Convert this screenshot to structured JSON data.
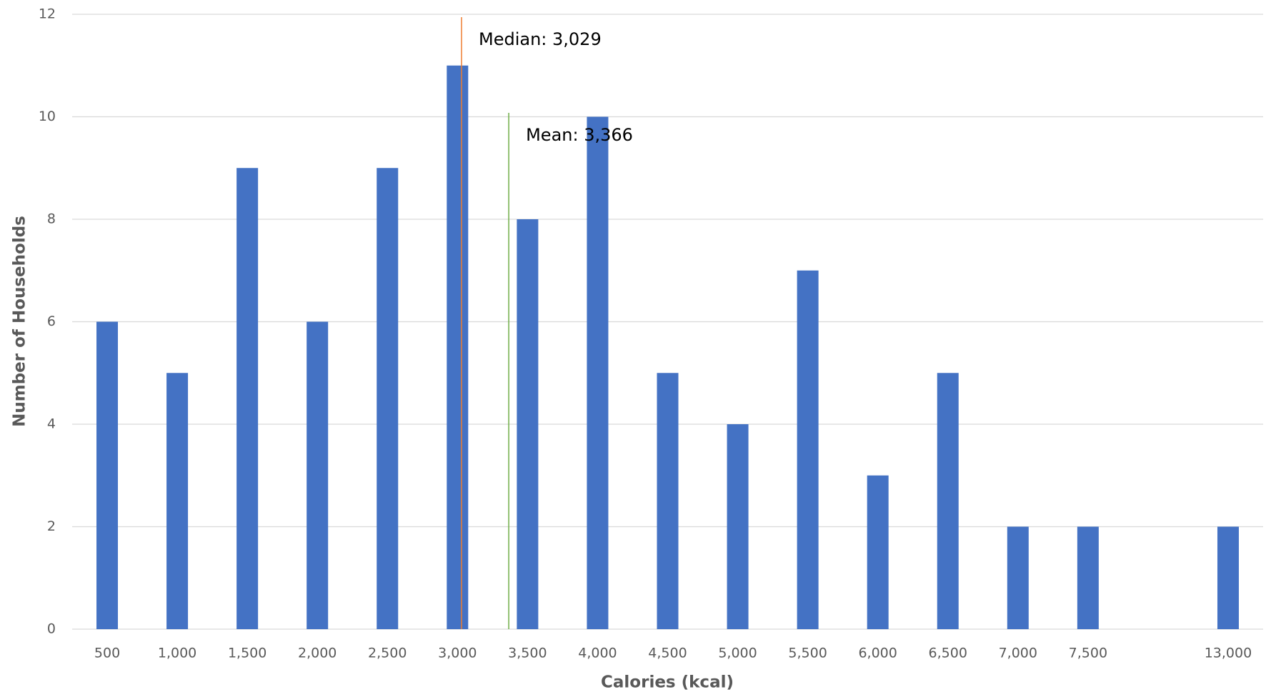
{
  "chart_data": {
    "type": "bar",
    "x_label": "Calories (kcal)",
    "y_label": "Number of Households",
    "categories": [
      "500",
      "1,000",
      "1,500",
      "2,000",
      "2,500",
      "3,000",
      "3,500",
      "4,000",
      "4,500",
      "5,000",
      "5,500",
      "6,000",
      "6,500",
      "7,000",
      "7,500",
      null,
      "13,000"
    ],
    "values": [
      6,
      5,
      9,
      6,
      9,
      11,
      8,
      10,
      5,
      4,
      7,
      3,
      5,
      2,
      2,
      null,
      2
    ],
    "color": "#4472c4",
    "ylim": [
      0,
      12
    ],
    "yticks": [
      0,
      2,
      4,
      6,
      8,
      10,
      12
    ],
    "grid": true,
    "annotations": [
      {
        "text": "Median: 3,029",
        "value": 3029,
        "color": "#ed7d31"
      },
      {
        "text": "Mean: 3,366",
        "value": 3366,
        "color": "#70ad47"
      }
    ]
  }
}
